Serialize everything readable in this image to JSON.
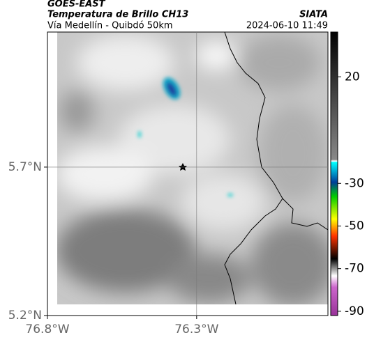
{
  "chart_data": {
    "type": "map",
    "title": "GOES-EAST",
    "subtitle": "Temperatura de Brillo CH13",
    "source": "SIATA",
    "region": "Vía Medellín - Quibdó 50km",
    "timestamp": "2024-06-10 11:49",
    "xlim": [
      -76.8,
      -75.86
    ],
    "ylim": [
      5.2,
      6.155
    ],
    "xticks": [
      {
        "value": -76.8,
        "label": "76.8°W"
      },
      {
        "value": -76.3,
        "label": "76.3°W"
      }
    ],
    "yticks": [
      {
        "value": 5.2,
        "label": "5.2°N"
      },
      {
        "value": 5.7,
        "label": "5.7°N"
      }
    ],
    "grid": true,
    "clim": [
      -92,
      41
    ],
    "cticks": [
      20,
      -30,
      -50,
      -70,
      -90
    ]
  }
}
